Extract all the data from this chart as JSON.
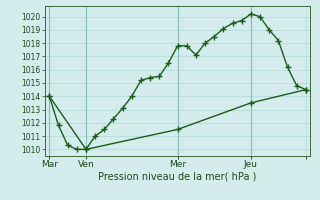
{
  "xlabel": "Pression niveau de la mer( hPa )",
  "ylim": [
    1009.5,
    1020.8
  ],
  "yticks": [
    1010,
    1011,
    1012,
    1013,
    1014,
    1015,
    1016,
    1017,
    1018,
    1019,
    1020
  ],
  "bg_color": "#d4ecec",
  "line_color": "#1a5c1a",
  "line1_x": [
    0,
    1,
    2,
    3,
    4,
    5,
    6,
    7,
    8,
    9,
    10,
    11,
    12,
    13,
    14,
    15,
    16,
    17,
    18,
    19,
    20,
    21,
    22,
    23,
    24,
    25,
    26,
    27,
    28
  ],
  "line1_y": [
    1014.0,
    1011.8,
    1010.3,
    1010.0,
    1010.0,
    1011.0,
    1011.5,
    1012.3,
    1013.1,
    1014.0,
    1015.2,
    1015.4,
    1015.5,
    1016.5,
    1017.8,
    1017.8,
    1017.1,
    1018.0,
    1018.5,
    1019.1,
    1019.5,
    1019.7,
    1020.2,
    1020.0,
    1019.0,
    1018.2,
    1016.2,
    1014.8,
    1014.5
  ],
  "line2_x": [
    0,
    4,
    14,
    22,
    28
  ],
  "line2_y": [
    1014.0,
    1010.0,
    1011.5,
    1013.5,
    1014.5
  ],
  "xtick_x": [
    0,
    4,
    14,
    22,
    28
  ],
  "xtick_labels": [
    "Mar",
    "Ven",
    "Mer",
    "Jeu",
    ""
  ],
  "vline_x": [
    0,
    4,
    14,
    22
  ],
  "grid_color": "#b0d8d8",
  "marker": "+",
  "marker_size": 4.5,
  "linewidth": 1.0,
  "ytick_fontsize": 5.5,
  "xtick_fontsize": 6.5,
  "xlabel_fontsize": 7.0
}
